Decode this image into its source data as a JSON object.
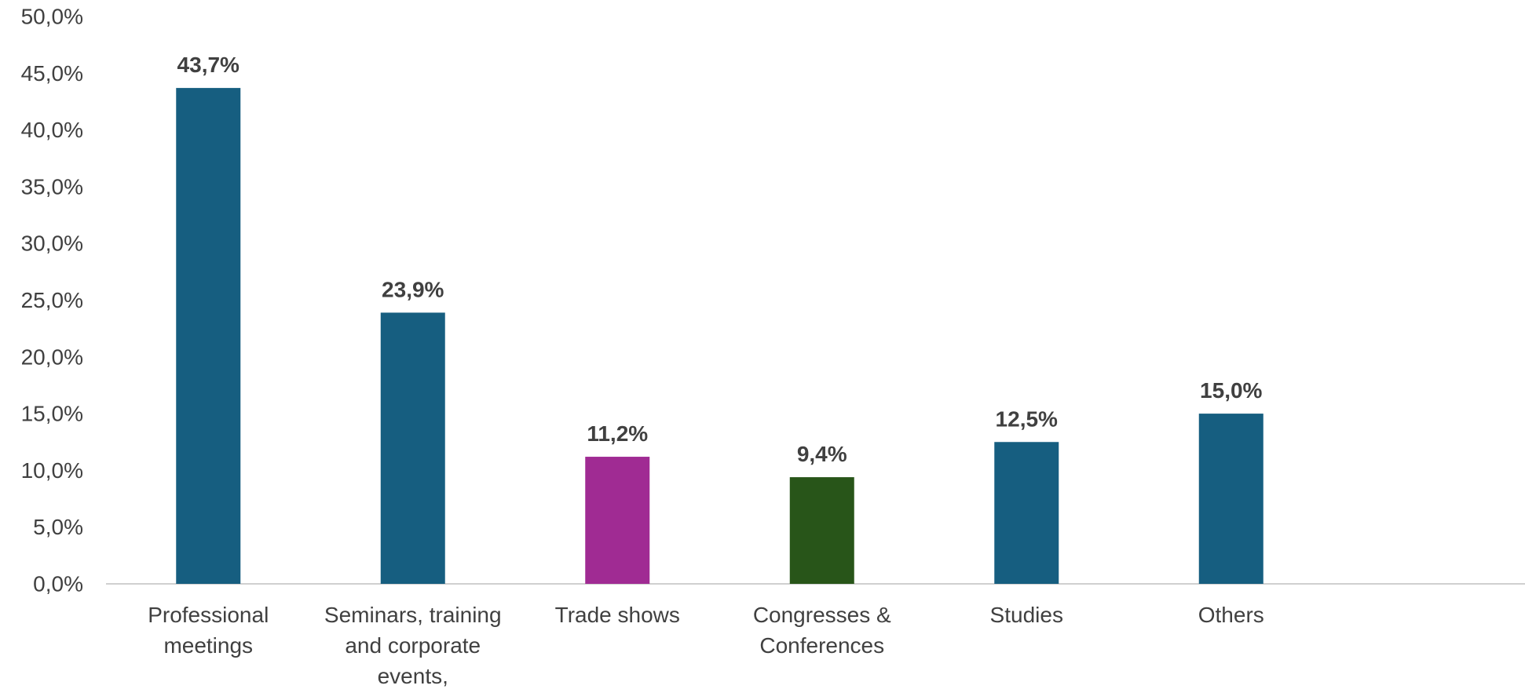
{
  "chart_data": {
    "type": "bar",
    "title": "",
    "xlabel": "",
    "ylabel": "",
    "ylim": [
      0,
      50
    ],
    "ytick_step": 5,
    "ytick_labels": [
      "0,0%",
      "5,0%",
      "10,0%",
      "15,0%",
      "20,0%",
      "25,0%",
      "30,0%",
      "35,0%",
      "40,0%",
      "45,0%",
      "50,0%"
    ],
    "grid": false,
    "categories": [
      [
        "Professional",
        "meetings"
      ],
      [
        "Seminars, training",
        "and corporate",
        "events,"
      ],
      [
        "Trade shows"
      ],
      [
        "Congresses &",
        "Conferences"
      ],
      [
        "Studies"
      ],
      [
        "Others"
      ]
    ],
    "values": [
      43.7,
      23.9,
      11.2,
      9.4,
      12.5,
      15.0
    ],
    "value_labels": [
      "43,7%",
      "23,9%",
      "11,2%",
      "9,4%",
      "12,5%",
      "15,0%"
    ],
    "colors": [
      "#165e80",
      "#165e80",
      "#a02b93",
      "#285519",
      "#165e80",
      "#165e80"
    ]
  }
}
